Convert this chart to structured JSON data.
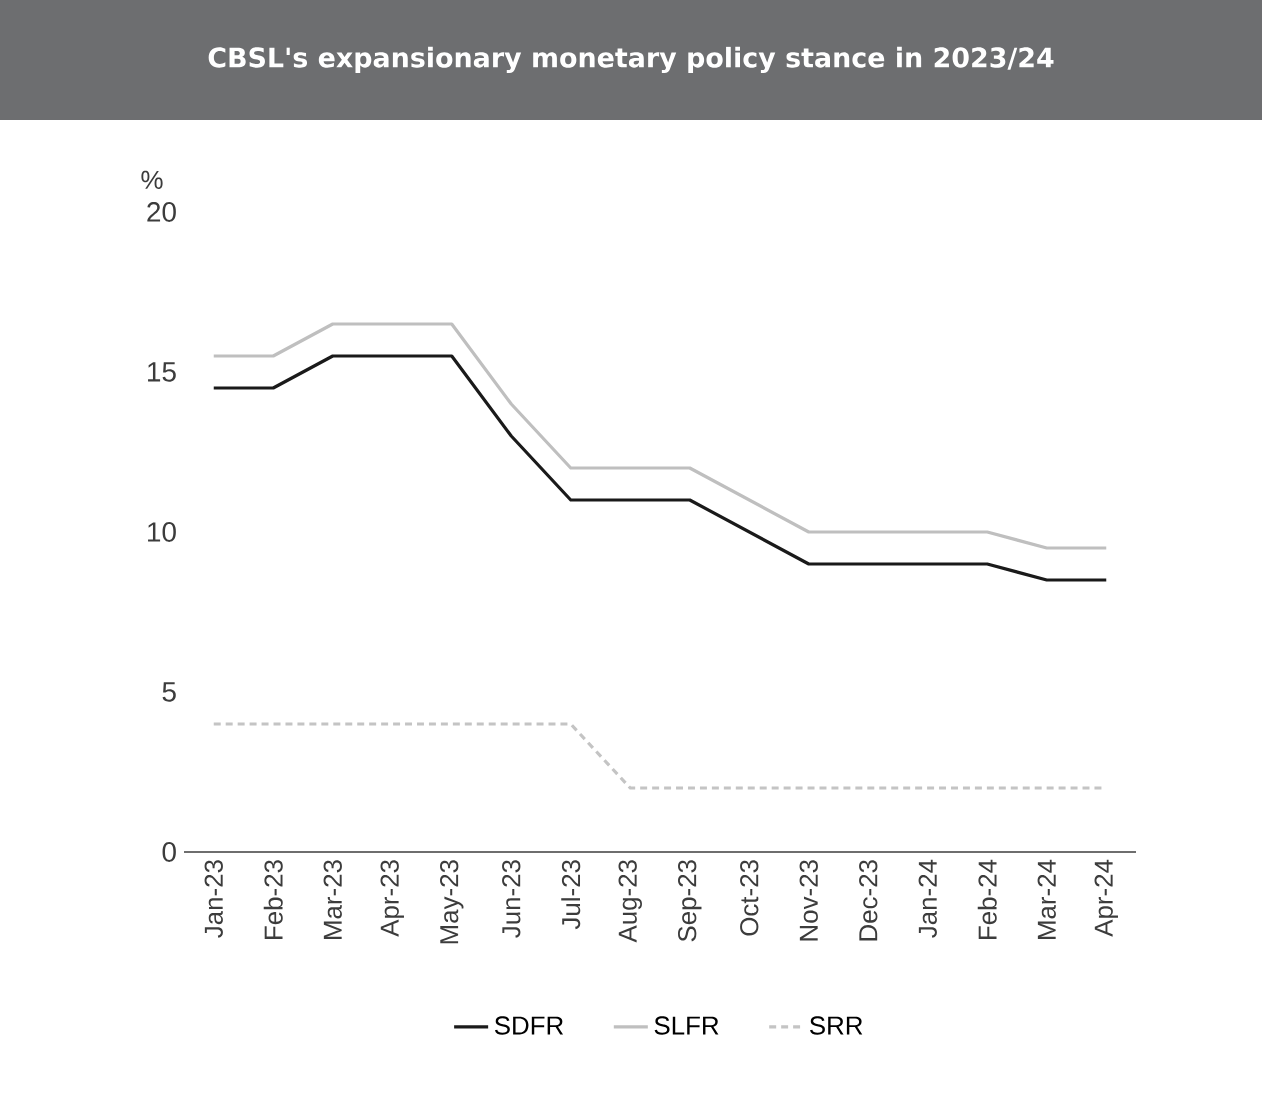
{
  "chart_data": {
    "type": "line",
    "title": "CBSL's expansionary monetary policy stance in 2023/24",
    "ylabel": "%",
    "categories": [
      "Jan-23",
      "Feb-23",
      "Mar-23",
      "Apr-23",
      "May-23",
      "Jun-23",
      "Jul-23",
      "Aug-23",
      "Sep-23",
      "Oct-23",
      "Nov-23",
      "Dec-23",
      "Jan-24",
      "Feb-24",
      "Mar-24",
      "Apr-24"
    ],
    "series": [
      {
        "name": "SDFR",
        "color": "#1a1a1a",
        "line_style": "solid",
        "values": [
          14.5,
          14.5,
          15.5,
          15.5,
          15.5,
          13,
          11,
          11,
          11,
          10,
          9,
          9,
          9,
          9,
          8.5,
          8.5
        ]
      },
      {
        "name": "SLFR",
        "color": "#bfbfbf",
        "line_style": "solid",
        "values": [
          15.5,
          15.5,
          16.5,
          16.5,
          16.5,
          14,
          12,
          12,
          12,
          11,
          10,
          10,
          10,
          10,
          9.5,
          9.5
        ]
      },
      {
        "name": "SRR",
        "color": "#c4c4c4",
        "line_style": "dashed",
        "values": [
          4,
          4,
          4,
          4,
          4,
          4,
          4,
          2,
          2,
          2,
          2,
          2,
          2,
          2,
          2,
          2
        ]
      }
    ],
    "ylim": [
      0,
      20
    ],
    "yticks": [
      0,
      5,
      10,
      15,
      20
    ],
    "grid": false,
    "legend": "bottom",
    "marker": "none"
  }
}
